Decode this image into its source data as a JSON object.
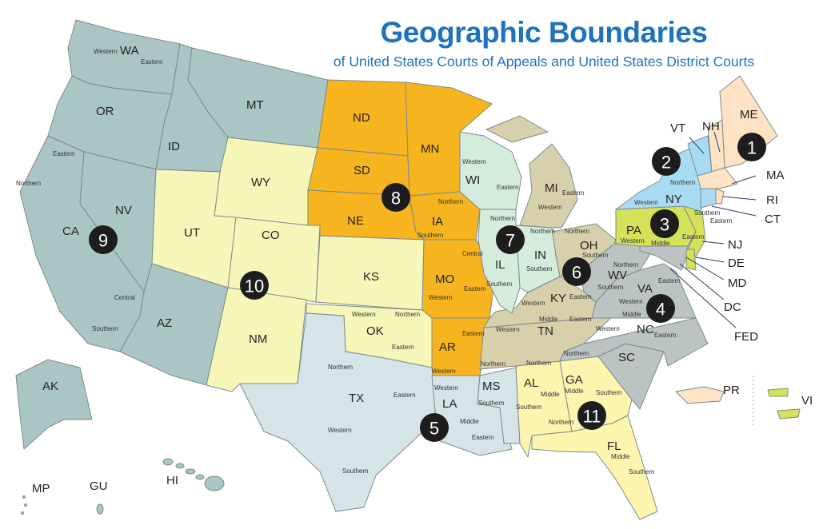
{
  "header": {
    "title": "Geographic Boundaries",
    "subtitle": "of United States Courts of Appeals and United States District Courts"
  },
  "circuits": [
    {
      "number": "1",
      "color": "#fde3c4",
      "states": [
        "ME",
        "NH",
        "MA",
        "RI",
        "PR"
      ]
    },
    {
      "number": "2",
      "color": "#a9dcf4",
      "states": [
        "VT",
        "NY",
        "CT"
      ]
    },
    {
      "number": "3",
      "color": "#d6e15a",
      "states": [
        "PA",
        "NJ",
        "DE",
        "VI"
      ]
    },
    {
      "number": "4",
      "color": "#bcc3c3",
      "states": [
        "MD",
        "WV",
        "VA",
        "NC",
        "SC"
      ]
    },
    {
      "number": "5",
      "color": "#d5e4e7",
      "states": [
        "TX",
        "LA",
        "MS"
      ]
    },
    {
      "number": "6",
      "color": "#d8cfab",
      "states": [
        "MI",
        "OH",
        "KY",
        "TN"
      ]
    },
    {
      "number": "7",
      "color": "#d4ecdc",
      "states": [
        "WI",
        "IL",
        "IN"
      ]
    },
    {
      "number": "8",
      "color": "#f6b51e",
      "states": [
        "ND",
        "SD",
        "NE",
        "MN",
        "IA",
        "MO",
        "AR"
      ]
    },
    {
      "number": "9",
      "color": "#a9c6c4",
      "states": [
        "WA",
        "OR",
        "CA",
        "NV",
        "ID",
        "MT",
        "AZ",
        "AK",
        "HI",
        "GU",
        "MP"
      ]
    },
    {
      "number": "10",
      "color": "#f6f6b9",
      "states": [
        "WY",
        "UT",
        "CO",
        "KS",
        "OK",
        "NM"
      ]
    },
    {
      "number": "11",
      "color": "#fdf5ae",
      "states": [
        "AL",
        "GA",
        "FL"
      ]
    }
  ],
  "states": {
    "WA": {
      "label": "WA",
      "districts": [
        "Western",
        "Eastern"
      ]
    },
    "OR": {
      "label": "OR",
      "districts": []
    },
    "CA": {
      "label": "CA",
      "districts": [
        "Eastern",
        "Northern",
        "Central",
        "Southern"
      ]
    },
    "NV": {
      "label": "NV",
      "districts": []
    },
    "ID": {
      "label": "ID",
      "districts": []
    },
    "MT": {
      "label": "MT",
      "districts": []
    },
    "AZ": {
      "label": "AZ",
      "districts": []
    },
    "AK": {
      "label": "AK",
      "districts": []
    },
    "HI": {
      "label": "HI",
      "districts": []
    },
    "GU": {
      "label": "GU",
      "districts": []
    },
    "MP": {
      "label": "MP",
      "districts": []
    },
    "WY": {
      "label": "WY",
      "districts": []
    },
    "UT": {
      "label": "UT",
      "districts": []
    },
    "CO": {
      "label": "CO",
      "districts": []
    },
    "KS": {
      "label": "KS",
      "districts": []
    },
    "OK": {
      "label": "OK",
      "districts": [
        "Western",
        "Northern",
        "Eastern"
      ]
    },
    "NM": {
      "label": "NM",
      "districts": []
    },
    "ND": {
      "label": "ND",
      "districts": []
    },
    "SD": {
      "label": "SD",
      "districts": []
    },
    "NE": {
      "label": "NE",
      "districts": []
    },
    "MN": {
      "label": "MN",
      "districts": []
    },
    "IA": {
      "label": "IA",
      "districts": [
        "Northern",
        "Southern"
      ]
    },
    "MO": {
      "label": "MO",
      "districts": [
        "Eastern",
        "Western"
      ]
    },
    "AR": {
      "label": "AR",
      "districts": [
        "Eastern",
        "Western"
      ]
    },
    "TX": {
      "label": "TX",
      "districts": [
        "Northern",
        "Eastern",
        "Western",
        "Southern"
      ]
    },
    "LA": {
      "label": "LA",
      "districts": [
        "Western",
        "Middle",
        "Eastern"
      ]
    },
    "MS": {
      "label": "MS",
      "districts": [
        "Northern",
        "Southern"
      ]
    },
    "WI": {
      "label": "WI",
      "districts": [
        "Western",
        "Eastern"
      ]
    },
    "IL": {
      "label": "IL",
      "districts": [
        "Northern",
        "Central",
        "Southern"
      ]
    },
    "IN": {
      "label": "IN",
      "districts": [
        "Northern",
        "Southern"
      ]
    },
    "MI": {
      "label": "MI",
      "districts": [
        "Eastern",
        "Western"
      ]
    },
    "OH": {
      "label": "OH",
      "districts": [
        "Northern",
        "Southern"
      ]
    },
    "KY": {
      "label": "KY",
      "districts": [
        "Western",
        "Eastern"
      ]
    },
    "TN": {
      "label": "TN",
      "districts": [
        "Western",
        "Middle",
        "Eastern"
      ]
    },
    "WV": {
      "label": "WV",
      "districts": [
        "Northern",
        "Southern"
      ]
    },
    "VA": {
      "label": "VA",
      "districts": [
        "Eastern",
        "Western"
      ]
    },
    "NC": {
      "label": "NC",
      "districts": [
        "Middle",
        "Western",
        "Eastern"
      ]
    },
    "SC": {
      "label": "SC",
      "districts": []
    },
    "MD": {
      "label": "MD",
      "districts": []
    },
    "DC": {
      "label": "DC",
      "districts": []
    },
    "FED": {
      "label": "FED",
      "districts": []
    },
    "PA": {
      "label": "PA",
      "districts": [
        "Western",
        "Middle",
        "Eastern"
      ]
    },
    "NJ": {
      "label": "NJ",
      "districts": []
    },
    "DE": {
      "label": "DE",
      "districts": []
    },
    "VI": {
      "label": "VI",
      "districts": []
    },
    "NY": {
      "label": "NY",
      "districts": [
        "Western",
        "Northern",
        "Southern",
        "Eastern"
      ]
    },
    "VT": {
      "label": "VT",
      "districts": []
    },
    "NH": {
      "label": "NH",
      "districts": []
    },
    "ME": {
      "label": "ME",
      "districts": []
    },
    "MA": {
      "label": "MA",
      "districts": []
    },
    "RI": {
      "label": "RI",
      "districts": []
    },
    "CT": {
      "label": "CT",
      "districts": []
    },
    "PR": {
      "label": "PR",
      "districts": []
    },
    "AL": {
      "label": "AL",
      "districts": [
        "Northern",
        "Middle",
        "Southern"
      ]
    },
    "GA": {
      "label": "GA",
      "districts": [
        "Northern",
        "Middle",
        "Southern"
      ]
    },
    "FL": {
      "label": "FL",
      "districts": [
        "Northern",
        "Middle",
        "Southern"
      ]
    }
  }
}
